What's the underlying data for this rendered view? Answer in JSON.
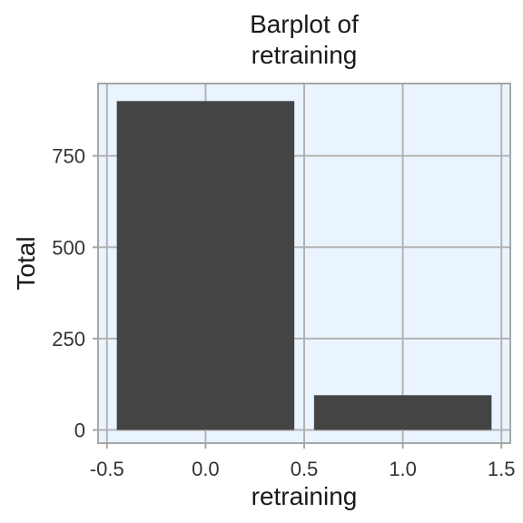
{
  "chart_data": {
    "type": "bar",
    "title_lines": [
      "Barplot of",
      "retraining"
    ],
    "xlabel": "retraining",
    "ylabel": "Total",
    "x": [
      0,
      1
    ],
    "values": [
      900,
      95
    ],
    "bar_width": 0.9,
    "xlim": [
      -0.545,
      1.545
    ],
    "ylim": [
      -36,
      948
    ],
    "x_ticks": [
      -0.5,
      0.0,
      0.5,
      1.0,
      1.5
    ],
    "x_tick_labels": [
      "-0.5",
      "0.0",
      "0.5",
      "1.0",
      "1.5"
    ],
    "y_ticks": [
      0,
      250,
      500,
      750
    ],
    "y_tick_labels": [
      "0",
      "250",
      "500",
      "750"
    ],
    "grid": true,
    "colors": {
      "panel_background": "#eaf4fe",
      "bar": "#444444",
      "grid": "#b3b3b3",
      "border": "#a6a6a6"
    }
  }
}
